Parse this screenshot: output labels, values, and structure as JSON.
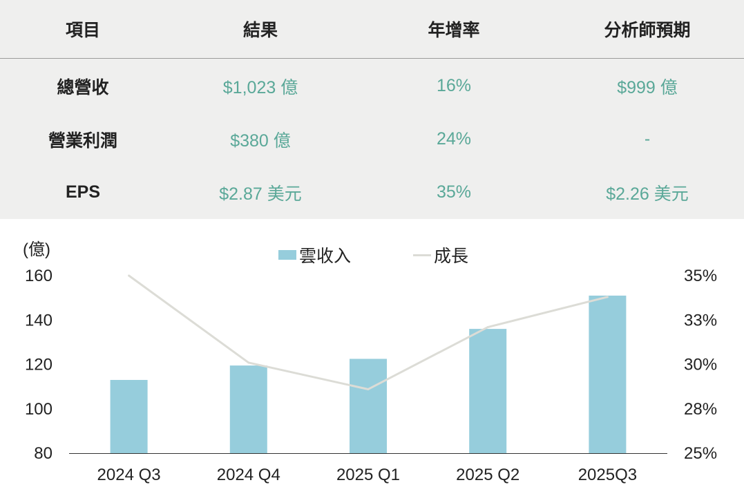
{
  "table": {
    "headers": [
      "項目",
      "結果",
      "年增率",
      "分析師預期"
    ],
    "rows": [
      [
        "總營收",
        "$1,023 億",
        "16%",
        "$999 億"
      ],
      [
        "營業利潤",
        "$380 億",
        "24%",
        "-"
      ],
      [
        "EPS",
        "$2.87 美元",
        "35%",
        "$2.26 美元"
      ]
    ]
  },
  "chart_data": {
    "type": "bar",
    "unit_label": "(億)",
    "categories": [
      "2024 Q3",
      "2024 Q4",
      "2025 Q1",
      "2025 Q2",
      "2025Q3"
    ],
    "series": [
      {
        "name": "雲收入",
        "type": "bar",
        "axis": "left",
        "color": "#96cddc",
        "values": [
          113,
          119.5,
          122.5,
          136,
          151
        ]
      },
      {
        "name": "成長",
        "type": "line",
        "axis": "right",
        "color": "#dcdcd6",
        "values": [
          35,
          30.1,
          28.6,
          32.1,
          33.8
        ]
      }
    ],
    "ylim_left": [
      80,
      160
    ],
    "yticks_left": [
      "80",
      "100",
      "120",
      "140",
      "160"
    ],
    "ylim_right": [
      25,
      35
    ],
    "yticks_right": [
      "25%",
      "28%",
      "30%",
      "33%",
      "35%"
    ],
    "grid": false,
    "legend_position": "top"
  }
}
